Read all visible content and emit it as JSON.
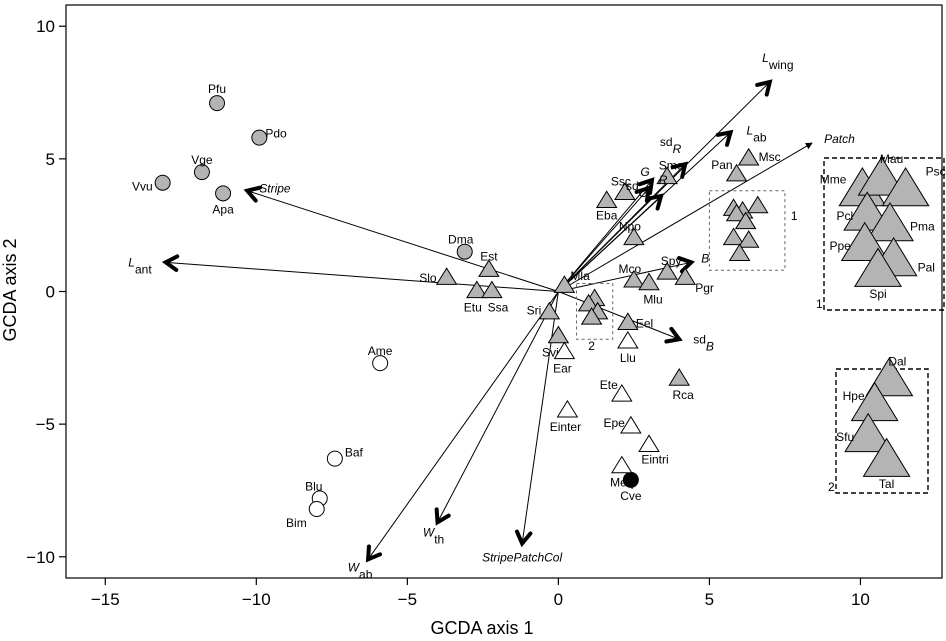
{
  "chart_data": {
    "type": "scatter",
    "title": "",
    "xlabel": "GCDA axis 1",
    "ylabel": "GCDA axis 2",
    "xlim": [
      -16.3,
      12.7
    ],
    "ylim": [
      -10.8,
      10.8
    ],
    "xticks": [
      -15,
      -10,
      -5,
      0,
      5,
      10
    ],
    "yticks": [
      -10,
      -5,
      0,
      5,
      10
    ],
    "colors": {
      "grey_fill": "#b4b4b4",
      "white_fill": "#ffffff",
      "black_fill": "#000000",
      "stroke": "#000000"
    },
    "points": [
      {
        "label": "Pfu",
        "x": -11.3,
        "y": 7.1,
        "shape": "circle",
        "fill": "grey"
      },
      {
        "label": "Pdo",
        "x": -9.9,
        "y": 5.8,
        "shape": "circle",
        "fill": "grey"
      },
      {
        "label": "Vge",
        "x": -11.8,
        "y": 4.5,
        "shape": "circle",
        "fill": "grey"
      },
      {
        "label": "Vvu",
        "x": -13.1,
        "y": 4.1,
        "shape": "circle",
        "fill": "grey"
      },
      {
        "label": "Apa",
        "x": -11.1,
        "y": 3.7,
        "shape": "circle",
        "fill": "grey"
      },
      {
        "label": "Dma",
        "x": -3.1,
        "y": 1.5,
        "shape": "circle",
        "fill": "grey"
      },
      {
        "label": "Ame",
        "x": -5.9,
        "y": -2.7,
        "shape": "circle",
        "fill": "white"
      },
      {
        "label": "Baf",
        "x": -7.4,
        "y": -6.3,
        "shape": "circle",
        "fill": "white"
      },
      {
        "label": "Blu",
        "x": -7.9,
        "y": -7.8,
        "shape": "circle",
        "fill": "white"
      },
      {
        "label": "Bim",
        "x": -8.0,
        "y": -8.2,
        "shape": "circle",
        "fill": "white"
      },
      {
        "label": "Cve",
        "x": 2.4,
        "y": -7.1,
        "shape": "circle",
        "fill": "black"
      },
      {
        "label": "Est",
        "x": -2.3,
        "y": 0.8,
        "shape": "triangle",
        "fill": "grey"
      },
      {
        "label": "Slo",
        "x": -3.7,
        "y": 0.5,
        "shape": "triangle",
        "fill": "grey"
      },
      {
        "label": "Etu",
        "x": -2.7,
        "y": 0.0,
        "shape": "triangle",
        "fill": "grey"
      },
      {
        "label": "Ssa",
        "x": -2.2,
        "y": 0.0,
        "shape": "triangle",
        "fill": "grey"
      },
      {
        "label": "Mla",
        "x": 0.2,
        "y": 0.2,
        "shape": "triangle",
        "fill": "grey"
      },
      {
        "label": "Sri",
        "x": -0.3,
        "y": -0.8,
        "shape": "triangle",
        "fill": "grey"
      },
      {
        "label": "Svi",
        "x": 0.0,
        "y": -1.7,
        "shape": "triangle",
        "fill": "grey"
      },
      {
        "label": "Ear",
        "x": 0.2,
        "y": -2.3,
        "shape": "triangle",
        "fill": "white"
      },
      {
        "label": "Einter",
        "x": 0.3,
        "y": -4.5,
        "shape": "triangle",
        "fill": "white"
      },
      {
        "label": "Eba",
        "x": 1.6,
        "y": 3.4,
        "shape": "triangle",
        "fill": "grey"
      },
      {
        "label": "Ssc",
        "x": 2.2,
        "y": 3.7,
        "shape": "triangle",
        "fill": "grey"
      },
      {
        "label": "Sme",
        "x": 3.6,
        "y": 4.3,
        "shape": "triangle",
        "fill": "grey"
      },
      {
        "label": "Npo",
        "x": 2.5,
        "y": 2.0,
        "shape": "triangle",
        "fill": "grey"
      },
      {
        "label": "Mco",
        "x": 2.5,
        "y": 0.4,
        "shape": "triangle",
        "fill": "grey"
      },
      {
        "label": "Spy",
        "x": 3.6,
        "y": 0.7,
        "shape": "triangle",
        "fill": "grey"
      },
      {
        "label": "Mlu",
        "x": 3.0,
        "y": 0.3,
        "shape": "triangle",
        "fill": "grey"
      },
      {
        "label": "Pgr",
        "x": 4.2,
        "y": 0.5,
        "shape": "triangle",
        "fill": "grey"
      },
      {
        "label": "Eel",
        "x": 2.3,
        "y": -1.2,
        "shape": "triangle",
        "fill": "grey"
      },
      {
        "label": "Llu",
        "x": 2.3,
        "y": -1.9,
        "shape": "triangle",
        "fill": "white"
      },
      {
        "label": "Ete",
        "x": 2.1,
        "y": -3.9,
        "shape": "triangle",
        "fill": "white"
      },
      {
        "label": "Rca",
        "x": 4.0,
        "y": -3.3,
        "shape": "triangle",
        "fill": "grey"
      },
      {
        "label": "Epe",
        "x": 2.4,
        "y": -5.1,
        "shape": "triangle",
        "fill": "white"
      },
      {
        "label": "Eintri",
        "x": 3.0,
        "y": -5.8,
        "shape": "triangle",
        "fill": "white"
      },
      {
        "label": "Meq",
        "x": 2.1,
        "y": -6.6,
        "shape": "triangle",
        "fill": "white"
      },
      {
        "label": "Msc",
        "x": 6.3,
        "y": 5.0,
        "shape": "triangle",
        "fill": "grey"
      },
      {
        "label": "Pan",
        "x": 5.9,
        "y": 4.4,
        "shape": "triangle",
        "fill": "grey"
      }
    ],
    "cluster_1_points": [
      {
        "x": 5.8,
        "y": 3.1
      },
      {
        "x": 6.1,
        "y": 3.0
      },
      {
        "x": 6.6,
        "y": 3.2
      },
      {
        "x": 5.9,
        "y": 2.9
      },
      {
        "x": 6.2,
        "y": 2.6
      },
      {
        "x": 5.8,
        "y": 2.0
      },
      {
        "x": 6.3,
        "y": 1.9
      },
      {
        "x": 6.0,
        "y": 1.4
      }
    ],
    "cluster_2_points": [
      {
        "x": 1.2,
        "y": -0.3
      },
      {
        "x": 1.0,
        "y": -0.5
      },
      {
        "x": 1.3,
        "y": -0.8
      },
      {
        "x": 1.1,
        "y": -1.0
      }
    ],
    "points_point_labels": {
      "Pfu": [
        -11.4,
        8.0
      ],
      "Pdo": [
        -9.2,
        5.9
      ],
      "Vge": [
        -11.8,
        5.3
      ],
      "Vvu": [
        -13.7,
        4.8
      ],
      "Apa": [
        -11.1,
        2.9
      ],
      "Dma": [
        -3.6,
        1.8
      ]
    },
    "vectors": [
      {
        "label": "L_wing",
        "main": "L",
        "sub": "wing",
        "italic_main": true,
        "x": 7.0,
        "y": 7.9,
        "bold": true
      },
      {
        "label": "L_ab",
        "main": "L",
        "sub": "ab",
        "italic_main": true,
        "x": 5.7,
        "y": 6.0,
        "bold": true
      },
      {
        "label": "sd_R",
        "main": "sd",
        "sub": "R",
        "italic_sub": true,
        "x": 4.2,
        "y": 4.8,
        "bold": true
      },
      {
        "label": "sd_G",
        "main": "sd",
        "sub": "G",
        "italic_sub": true,
        "x": 3.1,
        "y": 4.2,
        "bold": true
      },
      {
        "label": "G",
        "main": "G",
        "italic_main": true,
        "x": 3.0,
        "y": 3.9,
        "bold": true
      },
      {
        "label": "R",
        "main": "R",
        "italic_main": true,
        "x": 3.4,
        "y": 3.6,
        "bold": true
      },
      {
        "label": "Stripe",
        "main": "Stripe",
        "italic_main": true,
        "x": -10.3,
        "y": 3.8,
        "bold": true
      },
      {
        "label": "L_ant",
        "main": "L",
        "sub": "ant",
        "italic_main": true,
        "x": -13.0,
        "y": 1.1,
        "bold": true
      },
      {
        "label": "Patch",
        "main": "Patch",
        "italic_main": true,
        "x": 8.4,
        "y": 5.6,
        "bold": false
      },
      {
        "label": "B",
        "main": "B",
        "italic_main": true,
        "x": 4.4,
        "y": 1.1,
        "bold": true
      },
      {
        "label": "sd_B",
        "main": "sd",
        "sub": "B",
        "italic_sub": true,
        "x": 4.0,
        "y": -1.8,
        "bold": true
      },
      {
        "label": "W_ab",
        "main": "W",
        "sub": "ab",
        "italic_main": true,
        "x": -6.3,
        "y": -10.1,
        "bold": true
      },
      {
        "label": "W_th",
        "main": "W",
        "sub": "th",
        "italic_main": true,
        "x": -4.0,
        "y": -8.7,
        "bold": true
      },
      {
        "label": "StripePatchCol",
        "main": "StripePatchCol",
        "italic_main": true,
        "x": -1.2,
        "y": -9.5,
        "bold": true
      }
    ],
    "inset_1": {
      "id": "1",
      "points": [
        {
          "label": "Mme",
          "x": 0.32,
          "y": 0.22
        },
        {
          "label": "Mau",
          "x": 0.48,
          "y": 0.15
        },
        {
          "label": "Psc",
          "x": 0.68,
          "y": 0.22
        },
        {
          "label": "Pcl",
          "x": 0.36,
          "y": 0.38
        },
        {
          "label": "Pma",
          "x": 0.55,
          "y": 0.45
        },
        {
          "label": "Ppe",
          "x": 0.34,
          "y": 0.58
        },
        {
          "label": "Pal",
          "x": 0.58,
          "y": 0.68
        },
        {
          "label": "Spi",
          "x": 0.45,
          "y": 0.75
        }
      ]
    },
    "inset_2": {
      "id": "2",
      "points": [
        {
          "label": "Dal",
          "x": 0.58,
          "y": 0.1
        },
        {
          "label": "Hpe",
          "x": 0.42,
          "y": 0.3
        },
        {
          "label": "Sfu",
          "x": 0.35,
          "y": 0.55
        },
        {
          "label": "Tal",
          "x": 0.55,
          "y": 0.75
        }
      ]
    },
    "box_labels": [
      "1",
      "2"
    ]
  }
}
